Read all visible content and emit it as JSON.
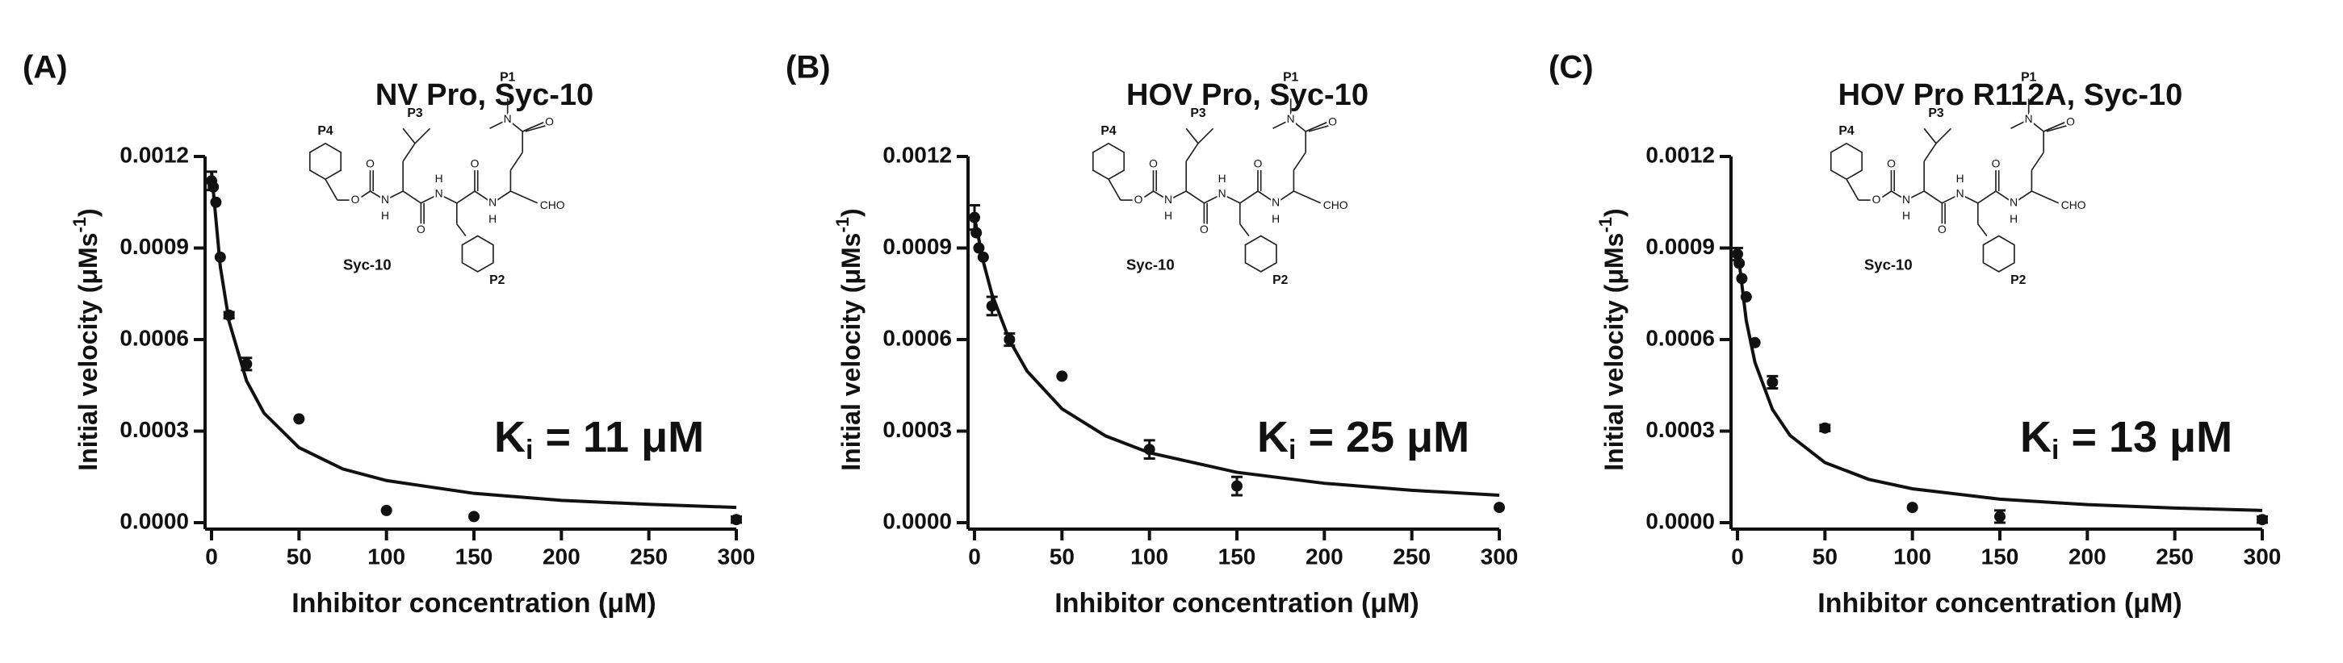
{
  "chart_data": [
    {
      "type": "scatter",
      "panel_label": "(A)",
      "title": "NV Pro, Syc-10",
      "xlabel": "Inhibitor concentration (μM)",
      "ylabel": {
        "main": "Initial velocity (μMs",
        "sup": "-1",
        "end": ")"
      },
      "annotation": {
        "main": "K",
        "sub": "i",
        "rest": " = 11 μM"
      },
      "xlim": [
        0,
        300
      ],
      "ylim": [
        0,
        0.0012
      ],
      "xticks": [
        0,
        50,
        100,
        150,
        200,
        250,
        300
      ],
      "yticks": [
        {
          "value": 0,
          "label": "0.0000"
        },
        {
          "value": 0.0003,
          "label": "0.0003"
        },
        {
          "value": 0.0006,
          "label": "0.0006"
        },
        {
          "value": 0.0009,
          "label": "0.0009"
        },
        0.0012
      ],
      "points": {
        "x": [
          0,
          1,
          2.5,
          5,
          10,
          20,
          50,
          100,
          150,
          300
        ],
        "values": [
          0.00112,
          0.0011,
          0.00105,
          0.00087,
          0.00068,
          0.00052,
          0.00034,
          4e-05,
          2e-05,
          1e-05
        ],
        "errors": [
          3e-05,
          null,
          null,
          null,
          1e-05,
          2e-05,
          null,
          null,
          null,
          1e-05
        ]
      },
      "fit": {
        "x": [
          0,
          5,
          10,
          20,
          30,
          50,
          75,
          100,
          150,
          200,
          250,
          300
        ],
        "values": [
          0.00115,
          0.00084,
          0.00066,
          0.000465,
          0.000359,
          0.000246,
          0.000176,
          0.000138,
          9.6e-05,
          7.3e-05,
          6e-05,
          5e-05
        ]
      },
      "structure_labels": [
        "P4",
        "P3",
        "P1",
        "P2",
        "Syc-10",
        "O",
        "O",
        "N",
        "H",
        "O",
        "N",
        "H",
        "O",
        "N",
        "H",
        "O",
        "N",
        "CHO"
      ]
    },
    {
      "type": "scatter",
      "panel_label": "(B)",
      "title": "HOV Pro, Syc-10",
      "xlabel": "Inhibitor concentration (μM)",
      "ylabel": {
        "main": "Initial velocity (μMs",
        "sup": "-1",
        "end": ")"
      },
      "annotation": {
        "main": "K",
        "sub": "i",
        "rest": " = 25 μM"
      },
      "xlim": [
        0,
        300
      ],
      "ylim": [
        0,
        0.0012
      ],
      "xticks": [
        0,
        50,
        100,
        150,
        200,
        250,
        300
      ],
      "yticks": [
        {
          "value": 0,
          "label": "0.0000"
        },
        {
          "value": 0.0003,
          "label": "0.0003"
        },
        {
          "value": 0.0006,
          "label": "0.0006"
        },
        {
          "value": 0.0009,
          "label": "0.0009"
        },
        0.0012
      ],
      "points": {
        "x": [
          0,
          1,
          2.5,
          5,
          10,
          20,
          50,
          100,
          150,
          300
        ],
        "values": [
          0.001,
          0.00095,
          0.0009,
          0.00087,
          0.00071,
          0.0006,
          0.00048,
          0.00024,
          0.00012,
          5e-05
        ],
        "errors": [
          4e-05,
          null,
          null,
          null,
          3e-05,
          2e-05,
          null,
          3e-05,
          3e-05,
          null
        ]
      },
      "fit": {
        "x": [
          0,
          5,
          10,
          20,
          30,
          50,
          75,
          100,
          150,
          200,
          250,
          300
        ],
        "values": [
          0.001,
          0.000856,
          0.000748,
          0.000598,
          0.000497,
          0.000373,
          0.000284,
          0.000229,
          0.000165,
          0.000129,
          0.000106,
          9e-05
        ]
      },
      "structure_labels": [
        "P4",
        "P3",
        "P1",
        "P2",
        "Syc-10",
        "O",
        "O",
        "N",
        "H",
        "O",
        "N",
        "H",
        "O",
        "N",
        "H",
        "O",
        "N",
        "CHO"
      ]
    },
    {
      "type": "scatter",
      "panel_label": "(C)",
      "title": "HOV Pro R112A, Syc-10",
      "xlabel": "Inhibitor concentration (μM)",
      "ylabel": {
        "main": "Initial velocity (μMs",
        "sup": "-1",
        "end": ")"
      },
      "annotation": {
        "main": "K",
        "sub": "i",
        "rest": " = 13 μM"
      },
      "xlim": [
        0,
        300
      ],
      "ylim": [
        0,
        0.0012
      ],
      "xticks": [
        0,
        50,
        100,
        150,
        200,
        250,
        300
      ],
      "yticks": [
        {
          "value": 0,
          "label": "0.0000"
        },
        {
          "value": 0.0003,
          "label": "0.0003"
        },
        {
          "value": 0.0006,
          "label": "0.0006"
        },
        {
          "value": 0.0009,
          "label": "0.0009"
        },
        0.0012
      ],
      "points": {
        "x": [
          0,
          1,
          2.5,
          5,
          10,
          20,
          50,
          100,
          150,
          300
        ],
        "values": [
          0.00088,
          0.00085,
          0.0008,
          0.00074,
          0.00059,
          0.00046,
          0.00031,
          5e-05,
          2e-05,
          1e-05
        ],
        "errors": [
          2e-05,
          null,
          null,
          null,
          null,
          2e-05,
          1e-05,
          null,
          2e-05,
          1e-05
        ]
      },
      "fit": {
        "x": [
          0,
          5,
          10,
          20,
          30,
          50,
          75,
          100,
          150,
          200,
          250,
          300
        ],
        "values": [
          0.0009,
          0.000663,
          0.000525,
          0.000371,
          0.000286,
          0.000197,
          0.000142,
          0.000111,
          7.7e-05,
          5.9e-05,
          4.8e-05,
          4e-05
        ]
      },
      "structure_labels": [
        "P4",
        "P3",
        "P1",
        "P2",
        "Syc-10",
        "O",
        "O",
        "N",
        "H",
        "O",
        "N",
        "H",
        "O",
        "N",
        "H",
        "O",
        "N",
        "CHO"
      ]
    }
  ]
}
